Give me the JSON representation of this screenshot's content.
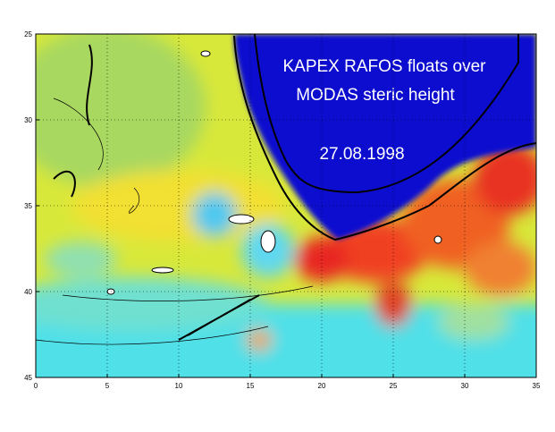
{
  "map": {
    "title_lines": [
      "KAPEX RAFOS floats over",
      "MODAS steric height"
    ],
    "date": "27.08.1998",
    "xlim": [
      0,
      35
    ],
    "xticks": [
      0,
      5,
      10,
      15,
      20,
      25,
      30,
      35
    ],
    "ylim": [
      25,
      45
    ],
    "yticks": [
      25,
      30,
      35,
      40,
      45
    ],
    "grid": true
  }
}
